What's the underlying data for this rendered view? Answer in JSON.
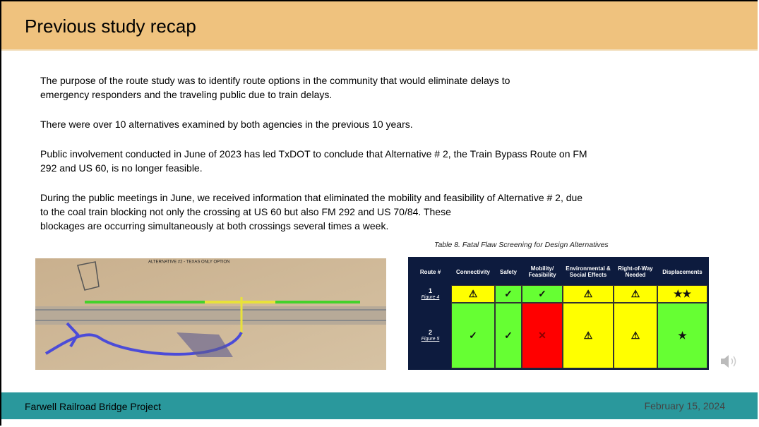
{
  "header": {
    "title": "Previous study recap"
  },
  "body": {
    "paragraphs": [
      [
        "The purpose of the route study was to identify route options in the community that would eliminate delays to",
        "emergency responders and the traveling public due to train delays."
      ],
      [
        "There were over 10 alternatives examined by both agencies in the previous 10 years."
      ],
      [
        "Public involvement conducted in June of 2023 has led TxDOT to conclude that Alternative # 2, the Train Bypass Route on FM",
        "292 and US 60, is no longer feasible."
      ],
      [
        "During the public meetings in June, we received information that eliminated the mobility and feasibility of Alternative # 2, due",
        "to the coal train blocking not only the crossing at US 60 but also FM 292 and US 70/84. These",
        "blockages are occurring simultaneously at both crossings several times a week."
      ]
    ]
  },
  "map": {
    "label": "ALTERNATIVE #2 - TEXAS ONLY OPTION"
  },
  "table": {
    "caption": "Table 8. Fatal Flaw Screening for Design Alternatives",
    "columns": [
      "Route #",
      "Connectivity",
      "Safety",
      "Mobility/ Feasibility",
      "Environmental & Social Effects",
      "Right-of-Way Needed",
      "Displacements"
    ],
    "rows": [
      {
        "route": "1",
        "figure": "Figure 4",
        "cells": [
          "⚠",
          "✓",
          "✓",
          "⚠",
          "⚠",
          "★★"
        ],
        "colors": [
          "#ffff00",
          "#66ff33",
          "#66ff33",
          "#ffff00",
          "#ffff00",
          "#ffff00"
        ]
      },
      {
        "route": "2",
        "figure": "Figure 5",
        "cells": [
          "✓",
          "✓",
          "✕",
          "⚠",
          "⚠",
          "★"
        ],
        "colors": [
          "#66ff33",
          "#66ff33",
          "#ff0000",
          "#ffff00",
          "#ffff00",
          "#66ff33"
        ]
      }
    ]
  },
  "footer": {
    "project": "Farwell Railroad Bridge Project",
    "date": "February 15, 2024"
  }
}
